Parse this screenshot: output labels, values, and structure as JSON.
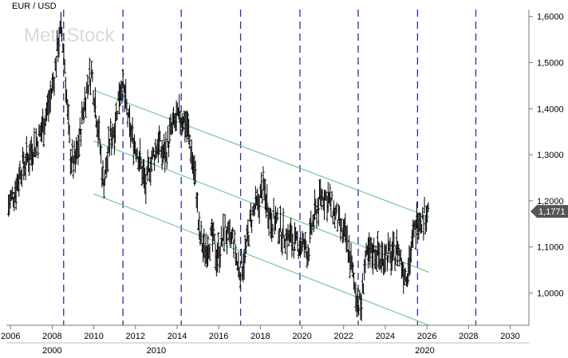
{
  "chart_data": {
    "type": "bar",
    "subtype": "ohlc-price-bars",
    "title": "EUR / USD",
    "watermark": "MetaStock",
    "y_axis": {
      "position": "right",
      "ylim": [
        0.93,
        1.615
      ],
      "ticks": [
        {
          "value": 1.6,
          "label": "1,6000"
        },
        {
          "value": 1.5,
          "label": "1,5000"
        },
        {
          "value": 1.4,
          "label": "1,4000"
        },
        {
          "value": 1.3,
          "label": "1,3000"
        },
        {
          "value": 1.2,
          "label": "1,2000"
        },
        {
          "value": 1.1,
          "label": "1,1000"
        },
        {
          "value": 1.0,
          "label": "1,0000"
        }
      ]
    },
    "x_axis": {
      "xlim": [
        2005.8,
        2030.9
      ],
      "ticks": [
        {
          "value": 2006,
          "label": "2006"
        },
        {
          "value": 2008,
          "label": "2008"
        },
        {
          "value": 2010,
          "label": "2010"
        },
        {
          "value": 2012,
          "label": "2012"
        },
        {
          "value": 2014,
          "label": "2014"
        },
        {
          "value": 2016,
          "label": "2016"
        },
        {
          "value": 2018,
          "label": "2018"
        },
        {
          "value": 2020,
          "label": "2020"
        },
        {
          "value": 2022,
          "label": "2022"
        },
        {
          "value": 2024,
          "label": "2024"
        },
        {
          "value": 2026,
          "label": "2026"
        },
        {
          "value": 2028,
          "label": "2028"
        },
        {
          "value": 2030,
          "label": "2030"
        }
      ],
      "decade_labels": [
        {
          "value": 2008,
          "label": "2000"
        },
        {
          "value": 2013,
          "label": "2010"
        },
        {
          "value": 2025.9,
          "label": "2020"
        }
      ]
    },
    "last_price": {
      "value": 1.1771,
      "label": "1,1771",
      "color": "#555555"
    },
    "cycle_lines": {
      "color": "#2e2e9a",
      "style": "dashed",
      "x": [
        2008.55,
        2011.4,
        2014.2,
        2017.05,
        2019.9,
        2022.7,
        2025.55,
        2028.35
      ]
    },
    "channel": {
      "color": "#5bbf8c",
      "lines": [
        {
          "start": [
            2010.0,
            1.44
          ],
          "end": [
            2026.1,
            1.165
          ]
        },
        {
          "start": [
            2010.0,
            1.33
          ],
          "end": [
            2026.1,
            1.045
          ]
        },
        {
          "start": [
            2010.0,
            1.215
          ],
          "end": [
            2026.1,
            0.93
          ]
        }
      ]
    },
    "bar_color": "#000000",
    "price_points": [
      [
        2005.9,
        1.19
      ],
      [
        2006.2,
        1.22
      ],
      [
        2006.5,
        1.27
      ],
      [
        2006.8,
        1.29
      ],
      [
        2007.0,
        1.31
      ],
      [
        2007.3,
        1.33
      ],
      [
        2007.6,
        1.37
      ],
      [
        2007.9,
        1.42
      ],
      [
        2008.1,
        1.47
      ],
      [
        2008.3,
        1.55
      ],
      [
        2008.45,
        1.57
      ],
      [
        2008.6,
        1.5
      ],
      [
        2008.75,
        1.38
      ],
      [
        2008.9,
        1.29
      ],
      [
        2009.1,
        1.28
      ],
      [
        2009.3,
        1.33
      ],
      [
        2009.5,
        1.4
      ],
      [
        2009.7,
        1.45
      ],
      [
        2009.9,
        1.48
      ],
      [
        2010.1,
        1.4
      ],
      [
        2010.3,
        1.32
      ],
      [
        2010.45,
        1.24
      ],
      [
        2010.6,
        1.27
      ],
      [
        2010.8,
        1.34
      ],
      [
        2011.0,
        1.36
      ],
      [
        2011.2,
        1.43
      ],
      [
        2011.35,
        1.46
      ],
      [
        2011.5,
        1.42
      ],
      [
        2011.7,
        1.36
      ],
      [
        2011.9,
        1.33
      ],
      [
        2012.1,
        1.31
      ],
      [
        2012.3,
        1.27
      ],
      [
        2012.5,
        1.23
      ],
      [
        2012.7,
        1.28
      ],
      [
        2012.9,
        1.3
      ],
      [
        2013.1,
        1.33
      ],
      [
        2013.3,
        1.3
      ],
      [
        2013.5,
        1.31
      ],
      [
        2013.7,
        1.35
      ],
      [
        2013.9,
        1.37
      ],
      [
        2014.1,
        1.38
      ],
      [
        2014.3,
        1.38
      ],
      [
        2014.5,
        1.36
      ],
      [
        2014.7,
        1.3
      ],
      [
        2014.9,
        1.24
      ],
      [
        2015.05,
        1.13
      ],
      [
        2015.3,
        1.09
      ],
      [
        2015.5,
        1.11
      ],
      [
        2015.7,
        1.12
      ],
      [
        2015.9,
        1.08
      ],
      [
        2016.1,
        1.1
      ],
      [
        2016.3,
        1.14
      ],
      [
        2016.5,
        1.11
      ],
      [
        2016.7,
        1.12
      ],
      [
        2016.9,
        1.06
      ],
      [
        2017.05,
        1.05
      ],
      [
        2017.3,
        1.09
      ],
      [
        2017.5,
        1.15
      ],
      [
        2017.7,
        1.18
      ],
      [
        2017.9,
        1.19
      ],
      [
        2018.1,
        1.23
      ],
      [
        2018.3,
        1.2
      ],
      [
        2018.5,
        1.16
      ],
      [
        2018.7,
        1.16
      ],
      [
        2018.9,
        1.14
      ],
      [
        2019.1,
        1.13
      ],
      [
        2019.3,
        1.12
      ],
      [
        2019.5,
        1.12
      ],
      [
        2019.7,
        1.1
      ],
      [
        2019.9,
        1.11
      ],
      [
        2020.1,
        1.1
      ],
      [
        2020.3,
        1.09
      ],
      [
        2020.5,
        1.15
      ],
      [
        2020.7,
        1.18
      ],
      [
        2020.9,
        1.21
      ],
      [
        2021.1,
        1.21
      ],
      [
        2021.3,
        1.2
      ],
      [
        2021.5,
        1.18
      ],
      [
        2021.7,
        1.16
      ],
      [
        2021.9,
        1.13
      ],
      [
        2022.1,
        1.12
      ],
      [
        2022.3,
        1.08
      ],
      [
        2022.5,
        1.02
      ],
      [
        2022.7,
        0.98
      ],
      [
        2022.85,
        0.97
      ],
      [
        2023.0,
        1.06
      ],
      [
        2023.2,
        1.08
      ],
      [
        2023.4,
        1.09
      ],
      [
        2023.6,
        1.09
      ],
      [
        2023.8,
        1.07
      ],
      [
        2024.0,
        1.09
      ],
      [
        2024.2,
        1.08
      ],
      [
        2024.4,
        1.08
      ],
      [
        2024.6,
        1.1
      ],
      [
        2024.8,
        1.06
      ],
      [
        2025.0,
        1.04
      ],
      [
        2025.2,
        1.08
      ],
      [
        2025.4,
        1.13
      ],
      [
        2025.6,
        1.17
      ],
      [
        2025.8,
        1.16
      ],
      [
        2026.0,
        1.18
      ],
      [
        2026.1,
        1.177
      ]
    ]
  }
}
